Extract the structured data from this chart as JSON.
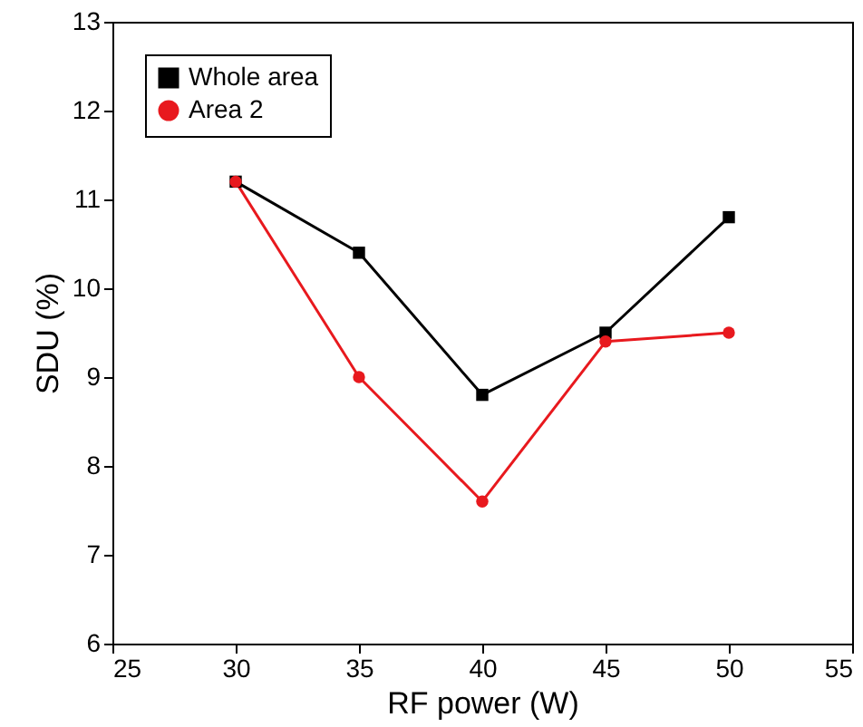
{
  "chart_data": {
    "type": "line",
    "xlabel": "RF power (W)",
    "ylabel": "SDU (%)",
    "x": [
      30,
      35,
      40,
      45,
      50
    ],
    "series": [
      {
        "name": "Whole area",
        "color": "#000000",
        "marker": "square",
        "values": [
          11.2,
          10.4,
          8.8,
          9.5,
          10.8
        ]
      },
      {
        "name": "Area 2",
        "color": "#e8191e",
        "marker": "circle",
        "values": [
          11.2,
          9.0,
          7.6,
          9.4,
          9.5
        ]
      }
    ],
    "xlim": [
      25,
      55
    ],
    "xticks": [
      25,
      30,
      35,
      40,
      45,
      50,
      55
    ],
    "ylim": [
      6,
      13
    ],
    "yticks": [
      6,
      7,
      8,
      9,
      10,
      11,
      12,
      13
    ],
    "grid": false,
    "legend": "top left",
    "line_style": "solid"
  }
}
